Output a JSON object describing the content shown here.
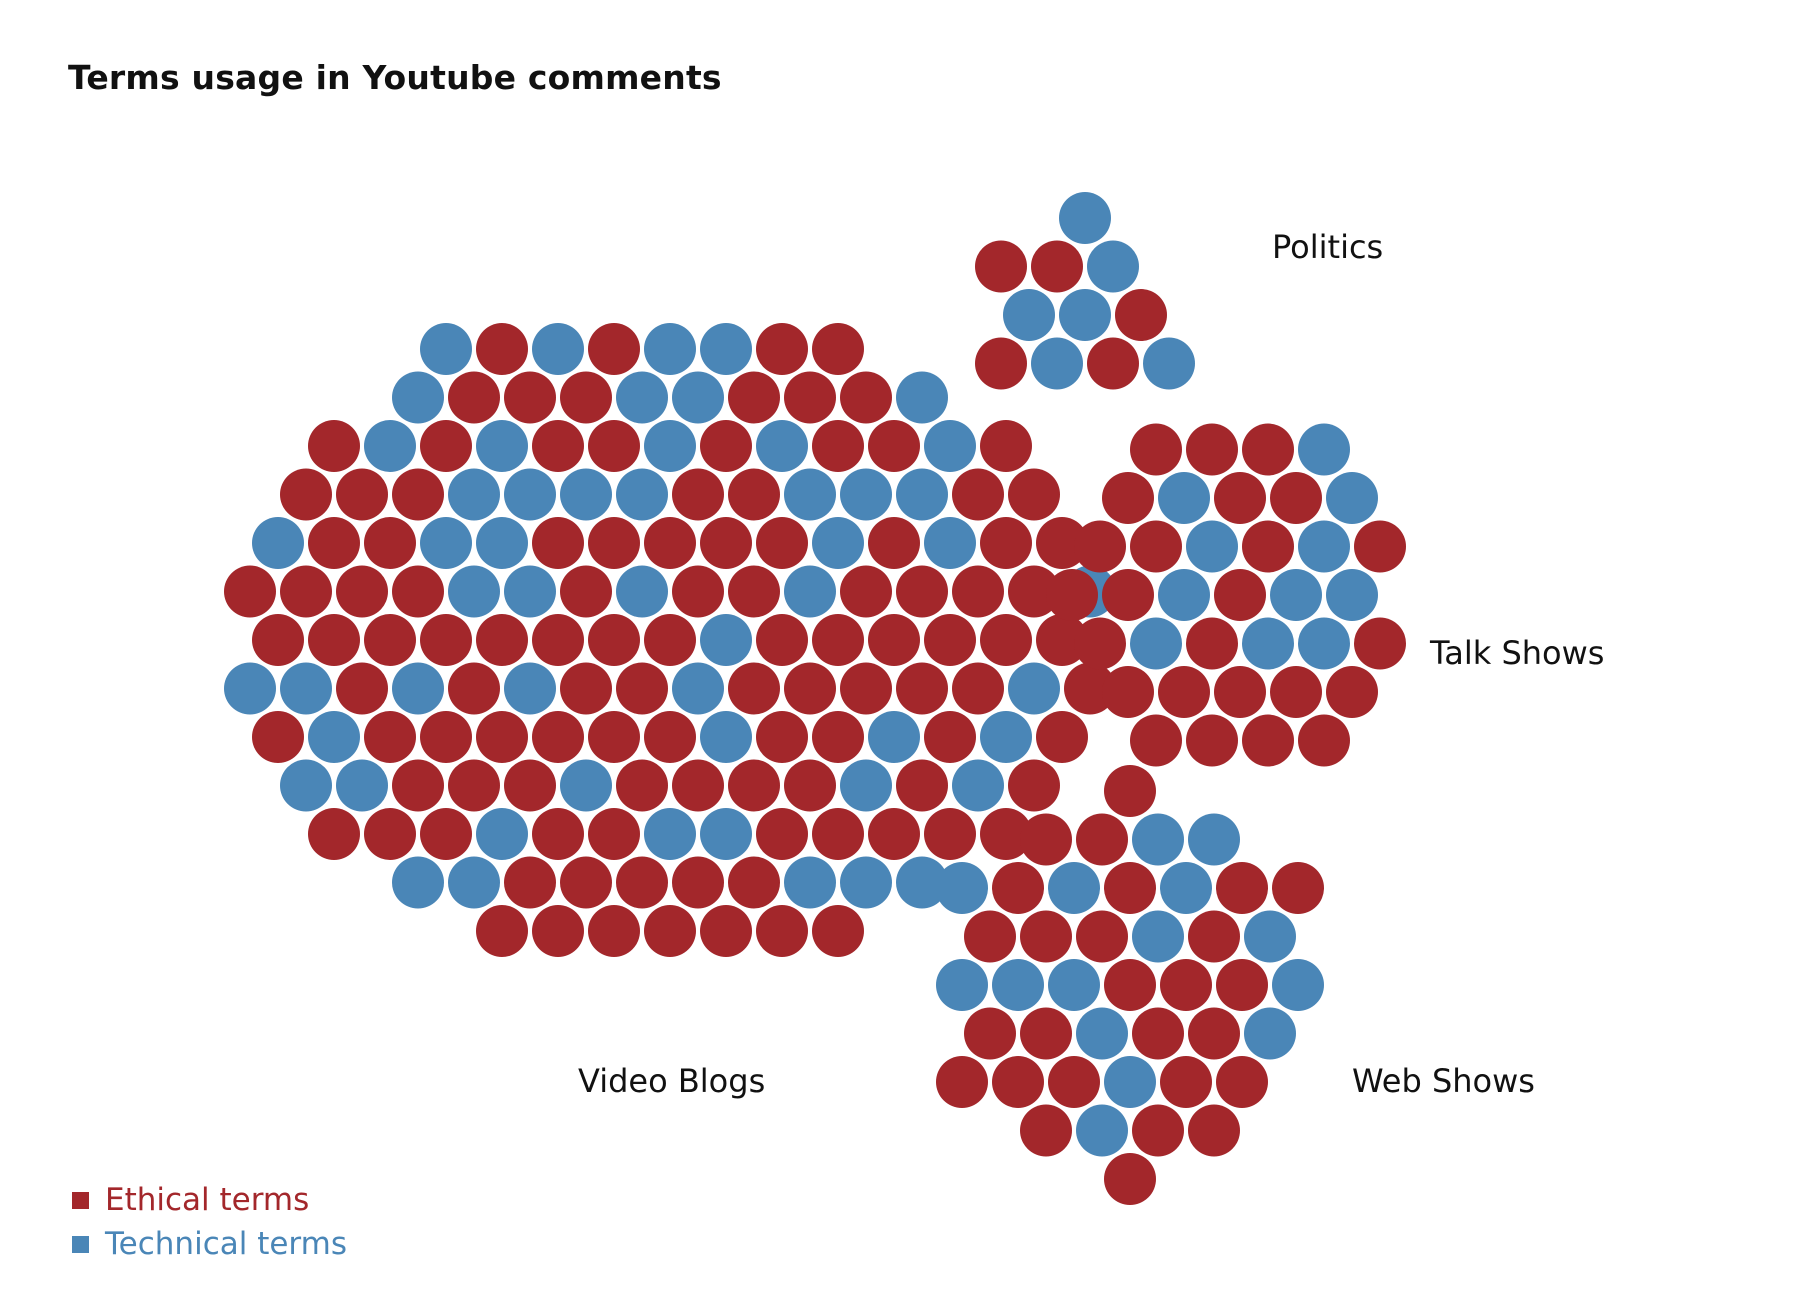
{
  "chart_data": {
    "type": "packed-bubble",
    "title": "Terms usage in Youtube comments",
    "legend": {
      "placement": "bottom-left",
      "entries": [
        {
          "key": "ethical",
          "label": "Ethical terms",
          "color": "#a3272b"
        },
        {
          "key": "technical",
          "label": "Technical terms",
          "color": "#4a86b7"
        }
      ]
    },
    "categories": [
      "Video Blogs",
      "Politics",
      "Talk Shows",
      "Web Shows"
    ],
    "series": [
      {
        "name": "Ethical terms",
        "values": [
          112,
          5,
          25,
          27
        ]
      },
      {
        "name": "Technical terms",
        "values": [
          54,
          6,
          11,
          15
        ]
      }
    ]
  }
}
